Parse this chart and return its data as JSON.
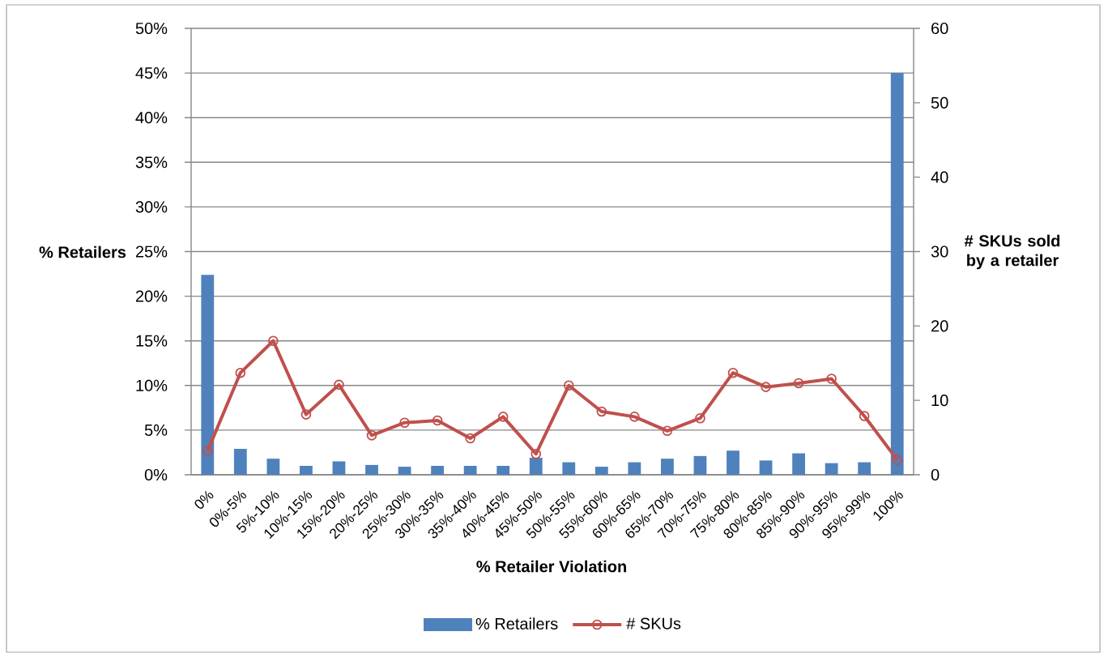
{
  "chart_data": {
    "type": "bar",
    "xlabel": "% Retailer Violation",
    "ylabel": "% Retailers",
    "y2label": "# SKUs sold by a retailer",
    "categories": [
      "0%",
      "0%-5%",
      "5%-10%",
      "10%-15%",
      "15%-20%",
      "20%-25%",
      "25%-30%",
      "30%-35%",
      "35%-40%",
      "40%-45%",
      "45%-50%",
      "50%-55%",
      "55%-60%",
      "60%-65%",
      "65%-70%",
      "70%-75%",
      "75%-80%",
      "80%-85%",
      "85%-90%",
      "90%-95%",
      "95%-99%",
      "100%"
    ],
    "series": [
      {
        "name": "% Retailers",
        "color": "#4f81bd",
        "values": [
          22.4,
          2.9,
          1.8,
          1.0,
          1.5,
          1.1,
          0.9,
          1.0,
          1.0,
          1.0,
          1.9,
          1.4,
          0.9,
          1.4,
          1.8,
          2.1,
          2.7,
          1.6,
          2.4,
          1.3,
          1.4,
          45
        ]
      },
      {
        "name": "# SKUs",
        "type": "line",
        "axis": "y2",
        "color": "#c0504d",
        "values": [
          3.2,
          13.7,
          18.0,
          8.1,
          12.1,
          5.3,
          7.0,
          7.3,
          4.9,
          7.8,
          2.8,
          12.0,
          8.5,
          7.8,
          5.9,
          7.6,
          13.7,
          11.8,
          12.3,
          12.9,
          7.9,
          2.0
        ]
      }
    ],
    "ylim": [
      0,
      50
    ],
    "yticks": [
      {
        "value": 0,
        "label": "0%"
      },
      {
        "value": 5,
        "label": "5%"
      },
      {
        "value": 10,
        "label": "10%"
      },
      {
        "value": 15,
        "label": "15%"
      },
      {
        "value": 20,
        "label": "20%"
      },
      {
        "value": 25,
        "label": "25%"
      },
      {
        "value": 30,
        "label": "30%"
      },
      {
        "value": 35,
        "label": "35%"
      },
      {
        "value": 40,
        "label": "40%"
      },
      {
        "value": 45,
        "label": "45%"
      },
      {
        "value": 50,
        "label": "50%"
      }
    ],
    "y2lim": [
      0,
      60
    ],
    "y2ticks": [
      0,
      10,
      20,
      30,
      40,
      50,
      60
    ],
    "grid": "y",
    "legend": "bottom",
    "marker": "circle"
  }
}
